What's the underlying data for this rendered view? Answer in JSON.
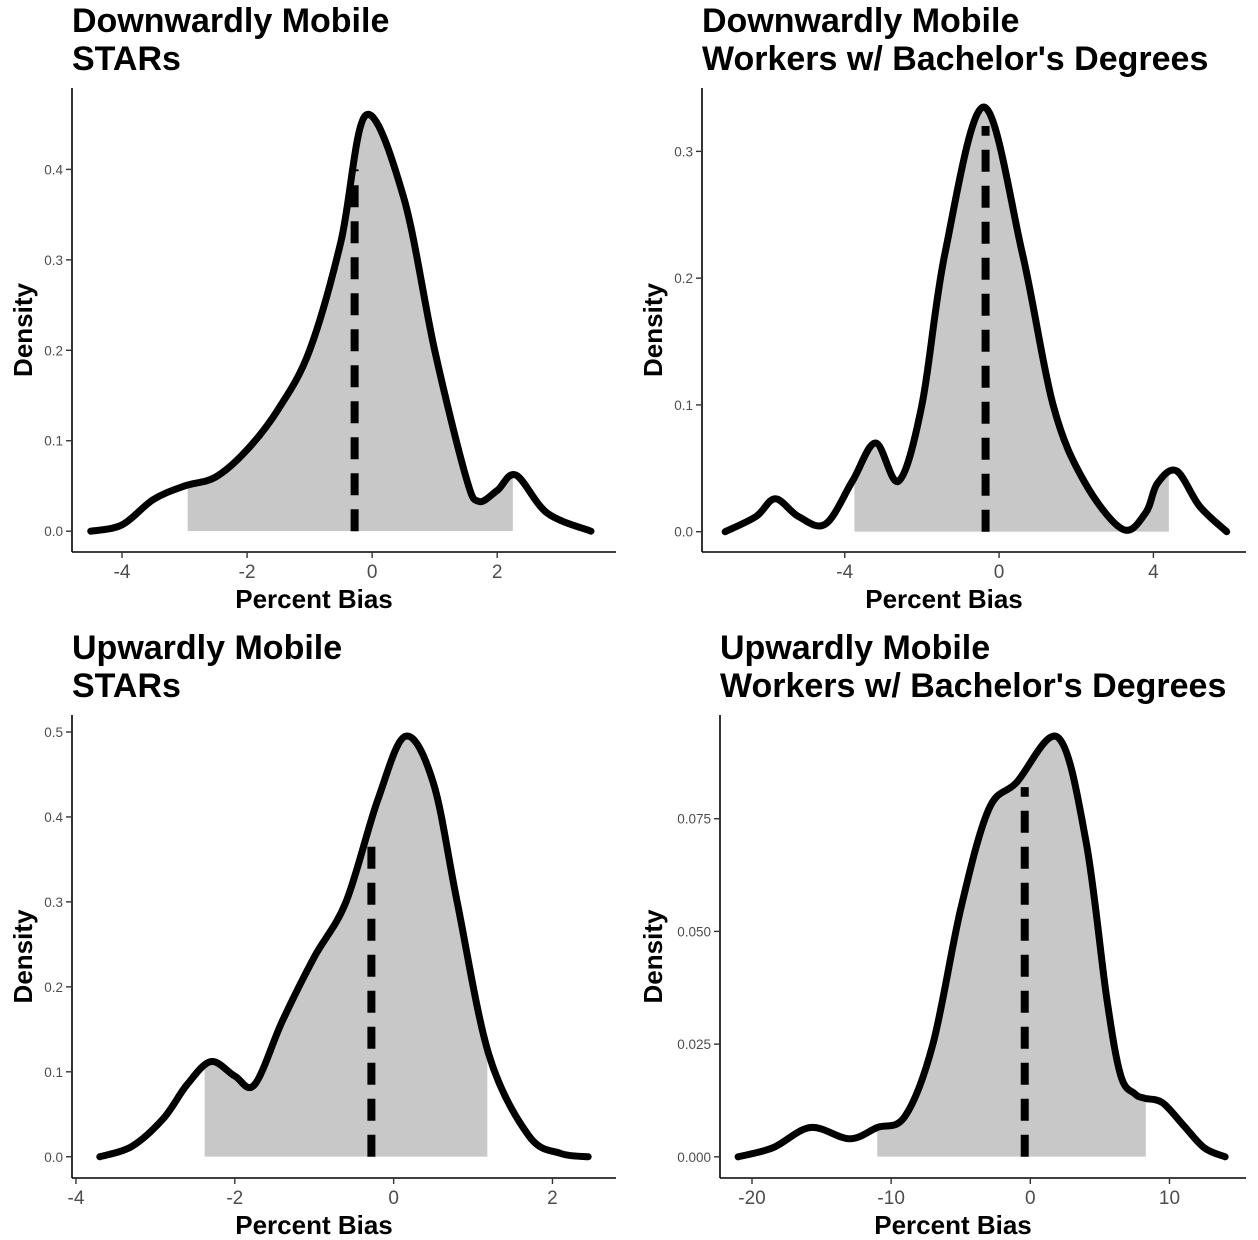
{
  "colors": {
    "fill": "#c8c8c8",
    "line": "#000000",
    "tick_text": "#4d4d4d",
    "background": "#ffffff"
  },
  "chart_data": [
    {
      "type": "area",
      "title": [
        "Downwardly Mobile",
        "STARs"
      ],
      "xlabel": "Percent Bias",
      "ylabel": "Density",
      "xlim": [
        -4.8,
        3.9
      ],
      "ylim": [
        -0.023,
        0.49
      ],
      "xticks": [
        -4,
        -2,
        0,
        2
      ],
      "xtick_labels": [
        "-4",
        "-2",
        "0",
        "2"
      ],
      "yticks": [
        0.0,
        0.1,
        0.2,
        0.3,
        0.4
      ],
      "ytick_labels": [
        "0.0",
        "0.1",
        "0.2",
        "0.3",
        "0.4"
      ],
      "density": {
        "x": [
          -4.5,
          -4.0,
          -3.5,
          -3.0,
          -2.5,
          -2.0,
          -1.5,
          -1.0,
          -0.5,
          -0.1,
          0.5,
          1.0,
          1.5,
          1.7,
          2.0,
          2.3,
          2.8,
          3.5
        ],
        "y": [
          0.0,
          0.007,
          0.035,
          0.05,
          0.06,
          0.09,
          0.135,
          0.2,
          0.32,
          0.46,
          0.37,
          0.2,
          0.06,
          0.033,
          0.045,
          0.062,
          0.02,
          0.0
        ]
      },
      "shade_range": [
        -2.95,
        2.25
      ],
      "dashed_line": {
        "x": -0.28,
        "y_top": 0.4
      },
      "grid": false,
      "legend": "none"
    },
    {
      "type": "area",
      "title": [
        "Downwardly Mobile",
        "Workers w/ Bachelor's Degrees"
      ],
      "xlabel": "Percent Bias",
      "ylabel": "Density",
      "xlim": [
        -7.7,
        6.4
      ],
      "ylim": [
        -0.016,
        0.35
      ],
      "xticks": [
        -4,
        0,
        4
      ],
      "xtick_labels": [
        "-4",
        "0",
        "4"
      ],
      "yticks": [
        0.0,
        0.1,
        0.2,
        0.3
      ],
      "ytick_labels": [
        "0.0",
        "0.1",
        "0.2",
        "0.3"
      ],
      "density": {
        "x": [
          -7.1,
          -6.3,
          -5.8,
          -5.2,
          -4.5,
          -3.8,
          -3.2,
          -2.6,
          -2.0,
          -1.4,
          -0.4,
          0.6,
          1.4,
          2.2,
          3.2,
          3.8,
          4.1,
          4.6,
          5.2,
          5.9
        ],
        "y": [
          0.0,
          0.012,
          0.026,
          0.012,
          0.006,
          0.04,
          0.07,
          0.04,
          0.1,
          0.22,
          0.335,
          0.22,
          0.1,
          0.04,
          0.002,
          0.015,
          0.038,
          0.048,
          0.02,
          0.0
        ]
      },
      "shade_range": [
        -3.75,
        4.4
      ],
      "dashed_line": {
        "x": -0.35,
        "y_top": 0.32
      },
      "grid": false,
      "legend": "none"
    },
    {
      "type": "area",
      "title": [
        "Upwardly Mobile",
        "STARs"
      ],
      "xlabel": "Percent Bias",
      "ylabel": "Density",
      "xlim": [
        -4.05,
        2.8
      ],
      "ylim": [
        -0.025,
        0.52
      ],
      "xticks": [
        -4,
        -2,
        0,
        2
      ],
      "xtick_labels": [
        "-4",
        "-2",
        "0",
        "2"
      ],
      "yticks": [
        0.0,
        0.1,
        0.2,
        0.3,
        0.4,
        0.5
      ],
      "ytick_labels": [
        "0.0",
        "0.1",
        "0.2",
        "0.3",
        "0.4",
        "0.5"
      ],
      "density": {
        "x": [
          -3.7,
          -3.3,
          -2.9,
          -2.6,
          -2.3,
          -2.0,
          -1.75,
          -1.4,
          -1.0,
          -0.6,
          -0.2,
          0.15,
          0.5,
          0.8,
          1.2,
          1.7,
          2.1,
          2.45
        ],
        "y": [
          0.0,
          0.012,
          0.045,
          0.085,
          0.112,
          0.095,
          0.085,
          0.16,
          0.235,
          0.3,
          0.42,
          0.495,
          0.44,
          0.3,
          0.12,
          0.025,
          0.004,
          0.0
        ]
      },
      "shade_range": [
        -2.38,
        1.18
      ],
      "dashed_line": {
        "x": -0.28,
        "y_top": 0.37
      },
      "grid": false,
      "legend": "none"
    },
    {
      "type": "area",
      "title": [
        "Upwardly Mobile",
        "Workers w/ Bachelor's Degrees"
      ],
      "xlabel": "Percent Bias",
      "ylabel": "Density",
      "xlim": [
        -22.3,
        15.5
      ],
      "ylim": [
        -0.0047,
        0.098
      ],
      "xticks": [
        -20,
        -10,
        0,
        10
      ],
      "xtick_labels": [
        "-20",
        "-10",
        "0",
        "10"
      ],
      "yticks": [
        0.0,
        0.025,
        0.05,
        0.075
      ],
      "ytick_labels": [
        "0.000",
        "0.025",
        "0.050",
        "0.075"
      ],
      "density": {
        "x": [
          -21.0,
          -18.5,
          -15.8,
          -13.0,
          -11.0,
          -9.0,
          -7.0,
          -5.0,
          -3.0,
          -1.0,
          2.0,
          4.0,
          5.5,
          6.5,
          7.5,
          8.2,
          9.5,
          11.0,
          12.5,
          14.0
        ],
        "y": [
          0.0,
          0.002,
          0.0065,
          0.004,
          0.0065,
          0.009,
          0.025,
          0.055,
          0.077,
          0.083,
          0.093,
          0.07,
          0.035,
          0.018,
          0.014,
          0.013,
          0.012,
          0.007,
          0.002,
          0.0
        ]
      },
      "shade_range": [
        -11.0,
        8.3
      ],
      "dashed_line": {
        "x": -0.4,
        "y_top": 0.082
      },
      "grid": false,
      "legend": "none"
    }
  ]
}
